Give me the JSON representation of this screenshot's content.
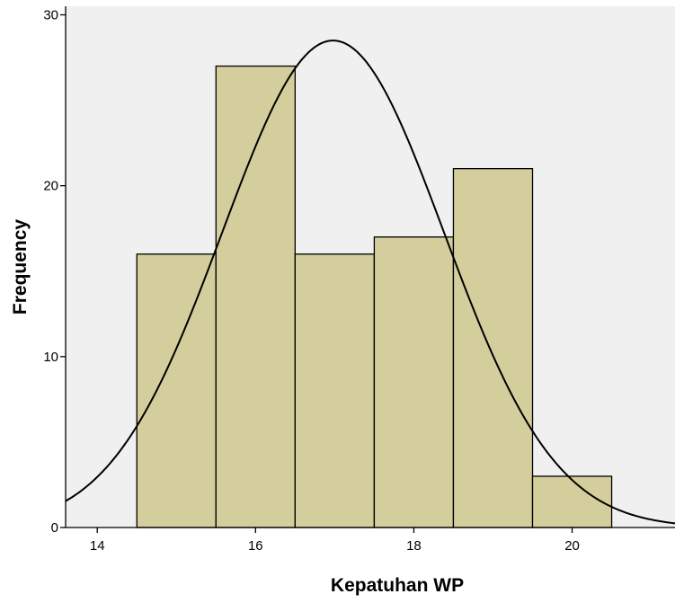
{
  "chart_data": {
    "type": "bar",
    "subtype": "histogram-with-normal-curve",
    "xlabel": "Kepatuhan WP",
    "ylabel": "Frequency",
    "xlim": [
      13.6,
      21.3
    ],
    "ylim": [
      0,
      30.5
    ],
    "x_ticks": [
      14,
      16,
      18,
      20
    ],
    "y_ticks": [
      0,
      10,
      20,
      30
    ],
    "bin_width": 1,
    "bins": [
      {
        "center": 15,
        "frequency": 16
      },
      {
        "center": 16,
        "frequency": 27
      },
      {
        "center": 17,
        "frequency": 16
      },
      {
        "center": 18,
        "frequency": 17
      },
      {
        "center": 19,
        "frequency": 21
      },
      {
        "center": 20,
        "frequency": 3
      }
    ],
    "normal_curve": {
      "mean": 16.98,
      "std_dev": 1.4
    },
    "colors": {
      "plot_background": "#f0f0f0",
      "bar_fill": "#d3ce9b",
      "bar_stroke": "#000000",
      "curve": "#000000"
    },
    "grid": false,
    "legend": "none"
  }
}
